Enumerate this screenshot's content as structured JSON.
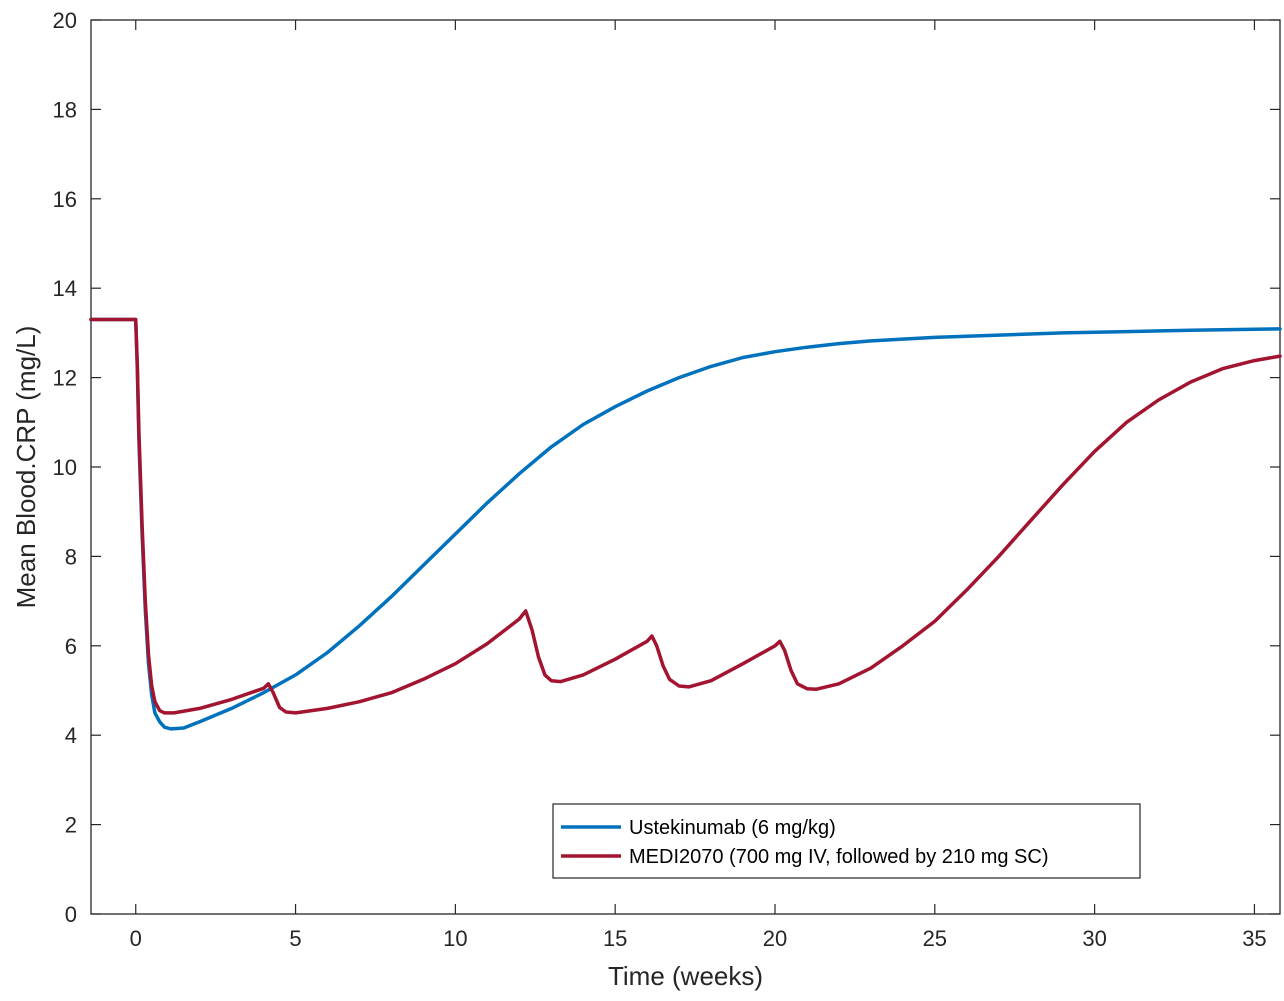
{
  "chart_data": {
    "type": "line",
    "title": "",
    "xlabel": "Time (weeks)",
    "ylabel": "Mean Blood.CRP (mg/L)",
    "xlim": [
      -1.4,
      35.8
    ],
    "ylim": [
      0,
      20
    ],
    "xticks": [
      0,
      5,
      10,
      15,
      20,
      25,
      30,
      35
    ],
    "yticks": [
      0,
      2,
      4,
      6,
      8,
      10,
      12,
      14,
      16,
      18,
      20
    ],
    "grid": false,
    "legend_position": "lower-right",
    "series": [
      {
        "name": "Ustekinumab (6 mg/kg)",
        "color": "#0072BD",
        "points": [
          [
            -1.4,
            13.3
          ],
          [
            0.0,
            13.3
          ],
          [
            0.05,
            12.2
          ],
          [
            0.1,
            10.6
          ],
          [
            0.2,
            8.5
          ],
          [
            0.3,
            6.8
          ],
          [
            0.4,
            5.6
          ],
          [
            0.5,
            4.9
          ],
          [
            0.6,
            4.5
          ],
          [
            0.75,
            4.3
          ],
          [
            0.9,
            4.18
          ],
          [
            1.1,
            4.14
          ],
          [
            1.5,
            4.16
          ],
          [
            2.0,
            4.3
          ],
          [
            3.0,
            4.6
          ],
          [
            4.0,
            4.95
          ],
          [
            5.0,
            5.35
          ],
          [
            6.0,
            5.85
          ],
          [
            7.0,
            6.45
          ],
          [
            8.0,
            7.1
          ],
          [
            9.0,
            7.8
          ],
          [
            10.0,
            8.5
          ],
          [
            11.0,
            9.2
          ],
          [
            12.0,
            9.85
          ],
          [
            13.0,
            10.45
          ],
          [
            14.0,
            10.95
          ],
          [
            15.0,
            11.35
          ],
          [
            16.0,
            11.7
          ],
          [
            17.0,
            12.0
          ],
          [
            18.0,
            12.25
          ],
          [
            19.0,
            12.45
          ],
          [
            20.0,
            12.58
          ],
          [
            21.0,
            12.68
          ],
          [
            22.0,
            12.76
          ],
          [
            23.0,
            12.82
          ],
          [
            25.0,
            12.9
          ],
          [
            27.0,
            12.95
          ],
          [
            29.0,
            13.0
          ],
          [
            31.0,
            13.03
          ],
          [
            33.0,
            13.06
          ],
          [
            35.8,
            13.09
          ]
        ]
      },
      {
        "name": "MEDI2070 (700 mg IV, followed by 210 mg SC)",
        "color": "#A2142F",
        "points": [
          [
            -1.4,
            13.3
          ],
          [
            0.0,
            13.3
          ],
          [
            0.05,
            12.3
          ],
          [
            0.1,
            10.8
          ],
          [
            0.2,
            8.7
          ],
          [
            0.3,
            7.0
          ],
          [
            0.4,
            5.8
          ],
          [
            0.5,
            5.1
          ],
          [
            0.6,
            4.75
          ],
          [
            0.75,
            4.55
          ],
          [
            0.9,
            4.5
          ],
          [
            1.2,
            4.5
          ],
          [
            2.0,
            4.6
          ],
          [
            3.0,
            4.8
          ],
          [
            4.0,
            5.05
          ],
          [
            4.15,
            5.15
          ],
          [
            4.3,
            4.95
          ],
          [
            4.5,
            4.62
          ],
          [
            4.7,
            4.52
          ],
          [
            5.0,
            4.5
          ],
          [
            6.0,
            4.6
          ],
          [
            7.0,
            4.75
          ],
          [
            8.0,
            4.95
          ],
          [
            9.0,
            5.25
          ],
          [
            10.0,
            5.6
          ],
          [
            11.0,
            6.05
          ],
          [
            12.0,
            6.6
          ],
          [
            12.2,
            6.78
          ],
          [
            12.4,
            6.35
          ],
          [
            12.6,
            5.75
          ],
          [
            12.8,
            5.35
          ],
          [
            13.0,
            5.22
          ],
          [
            13.3,
            5.2
          ],
          [
            14.0,
            5.35
          ],
          [
            15.0,
            5.7
          ],
          [
            16.0,
            6.1
          ],
          [
            16.15,
            6.22
          ],
          [
            16.3,
            6.0
          ],
          [
            16.5,
            5.55
          ],
          [
            16.7,
            5.25
          ],
          [
            17.0,
            5.1
          ],
          [
            17.3,
            5.08
          ],
          [
            18.0,
            5.22
          ],
          [
            19.0,
            5.6
          ],
          [
            20.0,
            6.0
          ],
          [
            20.15,
            6.1
          ],
          [
            20.3,
            5.9
          ],
          [
            20.5,
            5.45
          ],
          [
            20.7,
            5.15
          ],
          [
            21.0,
            5.04
          ],
          [
            21.3,
            5.03
          ],
          [
            22.0,
            5.15
          ],
          [
            23.0,
            5.5
          ],
          [
            24.0,
            6.0
          ],
          [
            25.0,
            6.55
          ],
          [
            26.0,
            7.25
          ],
          [
            27.0,
            8.0
          ],
          [
            28.0,
            8.8
          ],
          [
            29.0,
            9.6
          ],
          [
            30.0,
            10.35
          ],
          [
            31.0,
            11.0
          ],
          [
            32.0,
            11.5
          ],
          [
            33.0,
            11.9
          ],
          [
            34.0,
            12.2
          ],
          [
            35.0,
            12.38
          ],
          [
            35.8,
            12.48
          ]
        ]
      }
    ]
  }
}
